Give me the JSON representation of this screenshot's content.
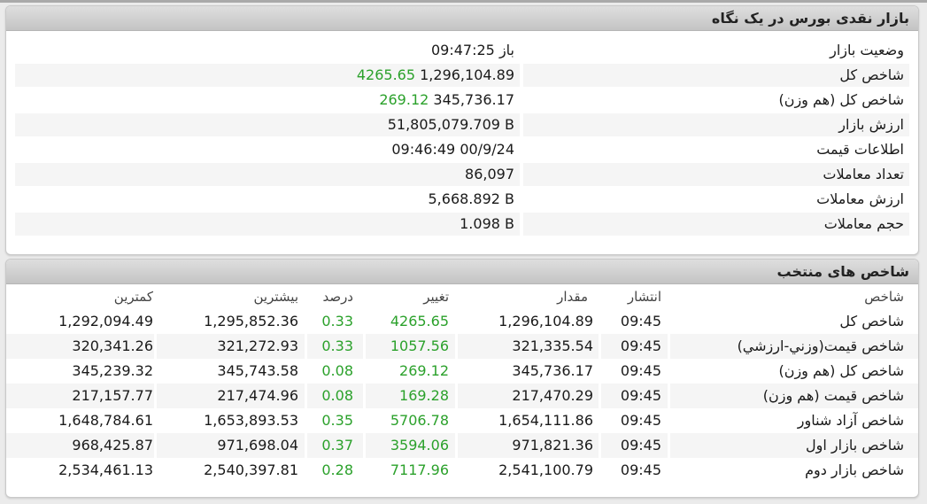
{
  "summary": {
    "title": "بازار نقدی بورس در یک نگاه",
    "rows": [
      {
        "label": "وضعیت بازار",
        "value": "09:47:25 باز",
        "green": ""
      },
      {
        "label": "شاخص کل",
        "value": "1,296,104.89",
        "green": "4265.65"
      },
      {
        "label": "شاخص کل (هم وزن)",
        "value": "345,736.17",
        "green": "269.12"
      },
      {
        "label": "ارزش بازار",
        "value": "51,805,079.709 B",
        "green": ""
      },
      {
        "label": "اطلاعات قیمت",
        "value": "09:46:49 00/9/24",
        "green": ""
      },
      {
        "label": "تعداد معاملات",
        "value": "86,097",
        "green": ""
      },
      {
        "label": "ارزش معاملات",
        "value": "5,668.892 B",
        "green": ""
      },
      {
        "label": "حجم معاملات",
        "value": "1.098 B",
        "green": ""
      }
    ]
  },
  "indices": {
    "title": "شاخص های منتخب",
    "columns": {
      "name": "شاخص",
      "time": "انتشار",
      "value": "مقدار",
      "change": "تغییر",
      "percent": "درصد",
      "high": "بیشترین",
      "low": "کمترین"
    },
    "rows": [
      {
        "name": "شاخص کل",
        "time": "09:45",
        "value": "1,296,104.89",
        "change": "4265.65",
        "percent": "0.33",
        "high": "1,295,852.36",
        "low": "1,292,094.49"
      },
      {
        "name": "شاخص قيمت(وزني-ارزشي)",
        "time": "09:45",
        "value": "321,335.54",
        "change": "1057.56",
        "percent": "0.33",
        "high": "321,272.93",
        "low": "320,341.26"
      },
      {
        "name": "شاخص کل (هم وزن)",
        "time": "09:45",
        "value": "345,736.17",
        "change": "269.12",
        "percent": "0.08",
        "high": "345,743.58",
        "low": "345,239.32"
      },
      {
        "name": "شاخص قیمت (هم وزن)",
        "time": "09:45",
        "value": "217,470.29",
        "change": "169.28",
        "percent": "0.08",
        "high": "217,474.96",
        "low": "217,157.77"
      },
      {
        "name": "شاخص آزاد شناور",
        "time": "09:45",
        "value": "1,654,111.86",
        "change": "5706.78",
        "percent": "0.35",
        "high": "1,653,893.53",
        "low": "1,648,784.61"
      },
      {
        "name": "شاخص بازار اول",
        "time": "09:45",
        "value": "971,821.36",
        "change": "3594.06",
        "percent": "0.37",
        "high": "971,698.04",
        "low": "968,425.87"
      },
      {
        "name": "شاخص بازار دوم",
        "time": "09:45",
        "value": "2,541,100.79",
        "change": "7117.96",
        "percent": "0.28",
        "high": "2,540,397.81",
        "low": "2,534,461.13"
      }
    ]
  },
  "colors": {
    "positive": "#2ba12b",
    "header_bg": "#cfcfcf",
    "alt_row": "#f5f5f5"
  }
}
